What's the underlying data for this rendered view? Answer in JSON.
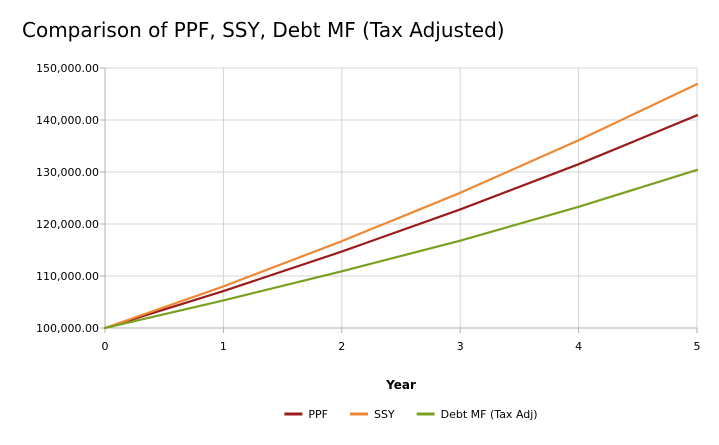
{
  "chart_data": {
    "type": "line",
    "title": "Comparison of PPF, SSY, Debt MF (Tax Adjusted)",
    "xlabel": "Year",
    "ylabel": "",
    "x": [
      0,
      1,
      2,
      3,
      4,
      5
    ],
    "x_ticks": [
      "0",
      "1",
      "2",
      "3",
      "4",
      "5"
    ],
    "xlim": [
      0,
      5
    ],
    "ylim": [
      100000,
      150000
    ],
    "y_ticks": [
      "100,000.00",
      "110,000.00",
      "120,000.00",
      "130,000.00",
      "140,000.00",
      "150,000.00"
    ],
    "y_tick_values": [
      100000,
      110000,
      120000,
      130000,
      140000,
      150000
    ],
    "grid": true,
    "legend_position": "bottom",
    "series": [
      {
        "name": "PPF",
        "color": "#9b1b1b",
        "values": [
          100000,
          107100,
          114700,
          122800,
          131500,
          140900
        ]
      },
      {
        "name": "SSY",
        "color": "#ef8833",
        "values": [
          100000,
          108000,
          116700,
          126000,
          136100,
          146900
        ]
      },
      {
        "name": "Debt MF (Tax Adj)",
        "color": "#7aa021",
        "values": [
          100000,
          105300,
          110900,
          116800,
          123300,
          130400
        ]
      }
    ]
  }
}
